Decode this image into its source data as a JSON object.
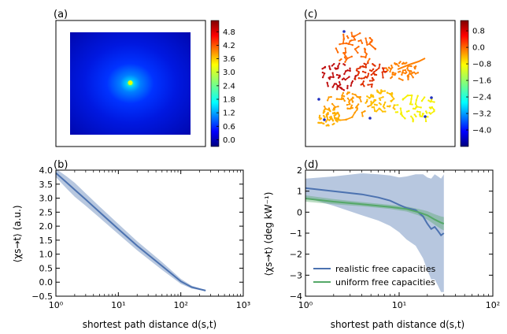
{
  "panel_labels": [
    "(a)",
    "(b)",
    "(c)",
    "(d)"
  ],
  "chart_data": [
    {
      "panel": "(a)",
      "type": "heatmap",
      "description_peak": {
        "x_frac": 0.5,
        "y_frac": 0.5
      },
      "colorbar": {
        "ticks": [
          "4.8",
          "4.2",
          "3.6",
          "3.0",
          "2.4",
          "1.8",
          "1.2",
          "0.6",
          "0.0"
        ],
        "vmin": -0.3,
        "vmax": 5.3,
        "colormap": "jet"
      }
    },
    {
      "panel": "(b)",
      "type": "line",
      "xscale": "log",
      "xlim": [
        1,
        1000
      ],
      "ylim": [
        -0.5,
        4.0
      ],
      "xlabel": "shortest path distance d(s,t)",
      "ylabel": "⟨χs→t⟩ (a.u.)",
      "xticks": [
        "10⁰",
        "10¹",
        "10²",
        "10³"
      ],
      "yticks": [
        "4.0",
        "3.5",
        "3.0",
        "2.5",
        "2.0",
        "1.5",
        "1.0",
        "0.5",
        "0.0",
        "−0.5"
      ],
      "series": [
        {
          "color": "#4c72b0",
          "x": [
            1,
            1.5,
            2,
            3,
            5,
            10,
            20,
            50,
            100,
            150,
            250
          ],
          "y": [
            3.9,
            3.55,
            3.3,
            2.95,
            2.5,
            1.9,
            1.3,
            0.58,
            0.03,
            -0.18,
            -0.3
          ],
          "band": [
            0.15,
            0.22,
            0.25,
            0.22,
            0.2,
            0.18,
            0.16,
            0.14,
            0.09,
            0.05,
            0.02
          ]
        }
      ]
    },
    {
      "panel": "(c)",
      "type": "network",
      "colorbar": {
        "ticks": [
          "0.8",
          "0.0",
          "−0.8",
          "−1.6",
          "−2.4",
          "−3.2",
          "−4.0"
        ],
        "vmin": -4.8,
        "vmax": 1.3,
        "colormap": "jet"
      }
    },
    {
      "panel": "(d)",
      "type": "line",
      "xscale": "log",
      "xlim": [
        1,
        100
      ],
      "ylim": [
        -4,
        2
      ],
      "xlabel": "shortest path distance d(s,t)",
      "ylabel": "⟨χs→t⟩ (deg kW⁻¹)",
      "xticks": [
        "10⁰",
        "10¹",
        "10²"
      ],
      "yticks": [
        "2",
        "1",
        "0",
        "−1",
        "−2",
        "−3",
        "−4"
      ],
      "legend": "bottom-left",
      "series": [
        {
          "name": "realistic free capacities",
          "color": "#4c72b0",
          "x": [
            1,
            2,
            4,
            6,
            8,
            10,
            12,
            15,
            18,
            20,
            22,
            24,
            26,
            28,
            30
          ],
          "y": [
            1.15,
            1.0,
            0.85,
            0.7,
            0.55,
            0.35,
            0.2,
            0.1,
            -0.2,
            -0.55,
            -0.8,
            -0.7,
            -0.9,
            -1.1,
            -1.0
          ],
          "band": [
            0.45,
            0.7,
            1.0,
            1.1,
            1.2,
            1.3,
            1.5,
            1.7,
            2.0,
            2.2,
            2.4,
            2.5,
            2.6,
            2.7,
            2.8
          ]
        },
        {
          "name": "uniform free capacities",
          "color": "#55a868",
          "x": [
            1,
            2,
            4,
            8,
            12,
            16,
            20,
            24,
            28,
            30
          ],
          "y": [
            0.65,
            0.5,
            0.38,
            0.25,
            0.15,
            0.0,
            -0.15,
            -0.35,
            -0.5,
            -0.55
          ],
          "band": [
            0.15,
            0.12,
            0.1,
            0.1,
            0.12,
            0.15,
            0.2,
            0.25,
            0.3,
            0.32
          ]
        }
      ]
    }
  ]
}
